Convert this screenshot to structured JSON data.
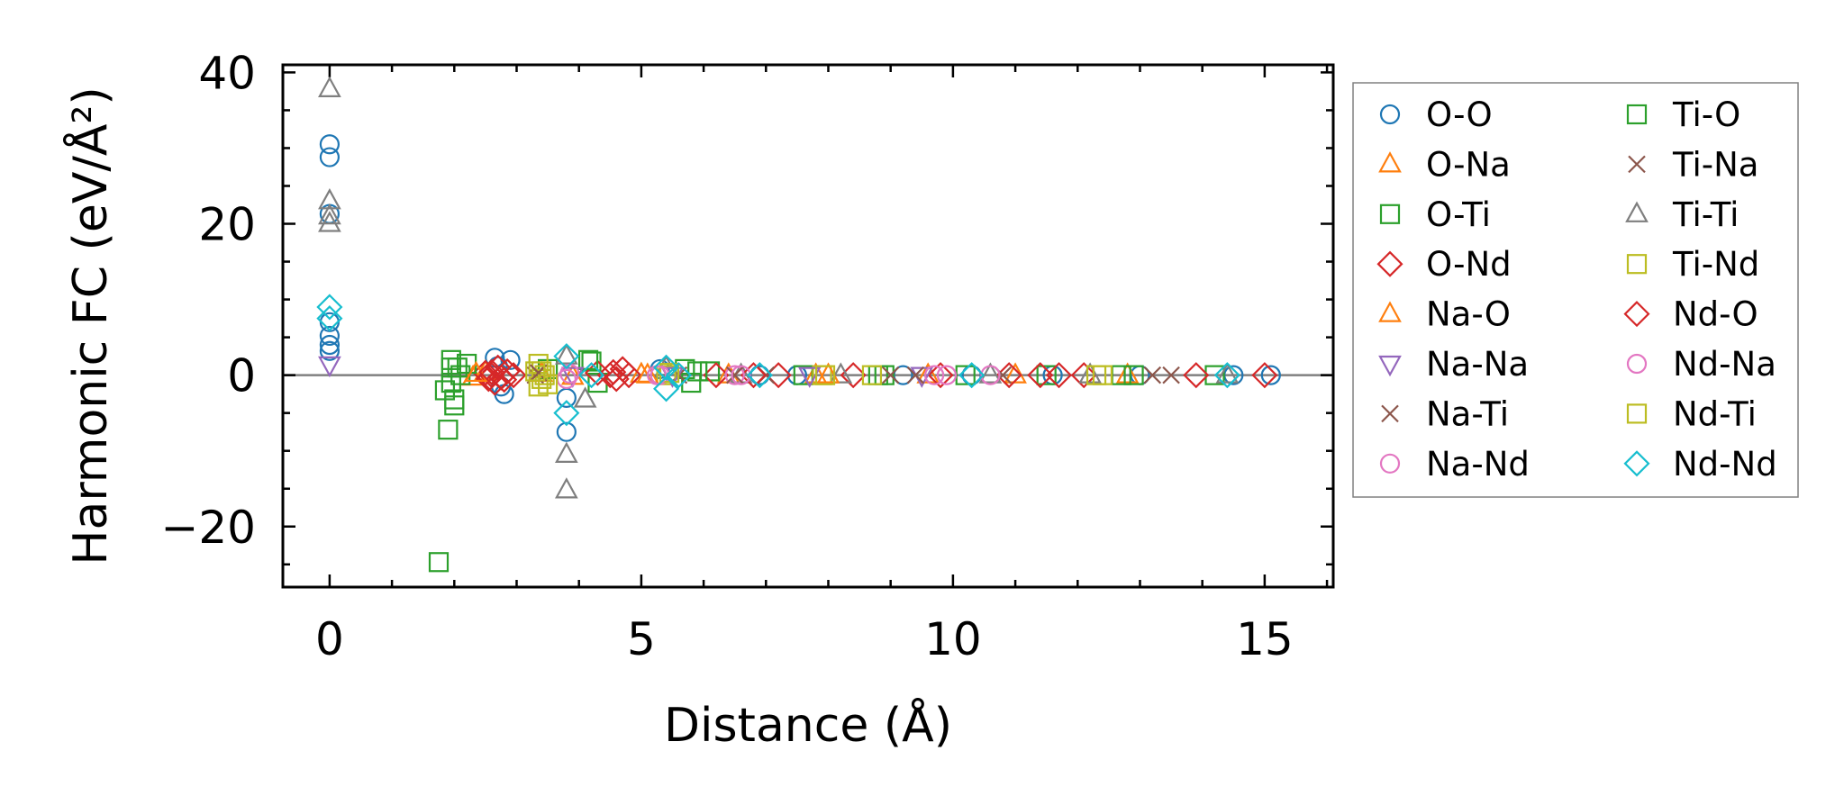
{
  "chart_data": {
    "type": "scatter",
    "title": "",
    "xlabel": "Distance (Å)",
    "ylabel": "Harmonic FC (eV/Å²)",
    "xlim": [
      -0.75,
      16.1
    ],
    "ylim": [
      -28.0,
      41.0
    ],
    "xticks": [
      0,
      5,
      10,
      15
    ],
    "xtick_labels": [
      "0",
      "5",
      "10",
      "15"
    ],
    "yticks": [
      -20,
      0,
      20,
      40
    ],
    "ytick_labels": [
      "−20",
      "0",
      "20",
      "40"
    ],
    "zero_line": true,
    "legend_placement": "outside-right",
    "series": [
      {
        "name": "O-O",
        "marker": "circle",
        "color": "#1f77b4",
        "points": [
          [
            0,
            30.5
          ],
          [
            0,
            28.8
          ],
          [
            0,
            21.3
          ],
          [
            0,
            7.0
          ],
          [
            0,
            5.2
          ],
          [
            0,
            4.0
          ],
          [
            0,
            3.2
          ],
          [
            2.65,
            2.3
          ],
          [
            2.7,
            1.2
          ],
          [
            2.75,
            -1.5
          ],
          [
            2.8,
            -2.5
          ],
          [
            2.9,
            2.0
          ],
          [
            3.8,
            -3.0
          ],
          [
            3.8,
            -7.5
          ],
          [
            5.3,
            0.8
          ],
          [
            6.9,
            0.0
          ],
          [
            7.5,
            0.0
          ],
          [
            9.2,
            0.0
          ],
          [
            10.3,
            0.0
          ],
          [
            11.6,
            0.0
          ],
          [
            13.0,
            0.0
          ],
          [
            14.5,
            0.0
          ],
          [
            15.1,
            0.0
          ]
        ]
      },
      {
        "name": "O-Na",
        "marker": "triangle-up",
        "color": "#ff7f0e",
        "points": [
          [
            2.3,
            -0.3
          ],
          [
            2.5,
            0.4
          ],
          [
            3.4,
            0.2
          ],
          [
            3.9,
            -0.2
          ],
          [
            5.0,
            0.1
          ],
          [
            6.4,
            0.0
          ],
          [
            7.8,
            0.0
          ],
          [
            9.6,
            0.0
          ],
          [
            11.0,
            0.0
          ],
          [
            12.8,
            0.0
          ]
        ]
      },
      {
        "name": "O-Ti",
        "marker": "square",
        "color": "#2ca02c",
        "points": [
          [
            1.75,
            -24.7
          ],
          [
            1.85,
            -2.0
          ],
          [
            1.9,
            -7.2
          ],
          [
            1.95,
            2.0
          ],
          [
            1.95,
            -1.0
          ],
          [
            2.0,
            -3.2
          ],
          [
            2.0,
            -4.0
          ],
          [
            2.05,
            1.0
          ],
          [
            2.1,
            0.0
          ],
          [
            3.5,
            0.8
          ],
          [
            4.2,
            1.8
          ],
          [
            4.3,
            -1.0
          ],
          [
            5.7,
            0.8
          ],
          [
            5.8,
            -1.0
          ],
          [
            6.1,
            0.5
          ],
          [
            7.6,
            0.0
          ],
          [
            8.9,
            0.0
          ],
          [
            10.2,
            0.0
          ],
          [
            11.5,
            0.0
          ],
          [
            12.9,
            0.0
          ],
          [
            14.2,
            0.0
          ]
        ]
      },
      {
        "name": "O-Nd",
        "marker": "diamond",
        "color": "#d62728",
        "points": [
          [
            2.5,
            0.3
          ],
          [
            2.55,
            -0.5
          ],
          [
            2.6,
            0.0
          ],
          [
            2.65,
            -1.0
          ],
          [
            2.7,
            1.0
          ],
          [
            2.75,
            -0.3
          ],
          [
            2.85,
            0.5
          ],
          [
            2.95,
            0.0
          ],
          [
            4.3,
            0.3
          ],
          [
            4.5,
            0.0
          ],
          [
            4.6,
            -0.5
          ],
          [
            4.7,
            0.8
          ],
          [
            4.8,
            0.0
          ],
          [
            6.2,
            0.0
          ],
          [
            7.2,
            0.0
          ],
          [
            8.4,
            0.0
          ],
          [
            10.9,
            0.0
          ],
          [
            11.4,
            0.0
          ],
          [
            12.1,
            0.0
          ],
          [
            13.9,
            0.0
          ],
          [
            15.0,
            0.0
          ]
        ]
      },
      {
        "name": "Ti-O",
        "marker": "square",
        "color": "#2ca02c",
        "points": [
          [
            1.95,
            1.0
          ],
          [
            2.2,
            1.5
          ],
          [
            4.15,
            2.0
          ],
          [
            5.9,
            0.5
          ],
          [
            8.8,
            0.0
          ],
          [
            12.7,
            0.0
          ]
        ]
      },
      {
        "name": "Ti-Na",
        "marker": "x",
        "color": "#8c564b",
        "points": [
          [
            3.3,
            0.0
          ],
          [
            5.6,
            0.0
          ],
          [
            7.0,
            0.0
          ],
          [
            9.0,
            0.0
          ],
          [
            10.8,
            0.0
          ],
          [
            13.5,
            0.0
          ]
        ]
      },
      {
        "name": "Ti-Ti",
        "marker": "triangle-up",
        "color": "#7f7f7f",
        "points": [
          [
            0,
            37.8
          ],
          [
            0,
            23.0
          ],
          [
            0,
            21.0
          ],
          [
            0,
            20.0
          ],
          [
            3.8,
            2.5
          ],
          [
            3.8,
            -10.5
          ],
          [
            3.8,
            -15.2
          ],
          [
            4.1,
            -3.2
          ],
          [
            5.4,
            1.0
          ],
          [
            6.6,
            0.0
          ],
          [
            8.2,
            0.0
          ],
          [
            10.6,
            0.0
          ],
          [
            12.2,
            0.0
          ],
          [
            14.4,
            0.0
          ]
        ]
      },
      {
        "name": "Ti-Nd",
        "marker": "square",
        "color": "#bcbd22",
        "points": [
          [
            3.35,
            1.5
          ],
          [
            3.35,
            -1.5
          ],
          [
            3.4,
            0.5
          ],
          [
            3.4,
            -0.5
          ],
          [
            3.45,
            0.0
          ],
          [
            5.4,
            0.0
          ],
          [
            7.9,
            0.0
          ],
          [
            8.7,
            0.0
          ],
          [
            12.3,
            0.0
          ]
        ]
      },
      {
        "name": "Na-O",
        "marker": "triangle-up",
        "color": "#ff7f0e",
        "points": [
          [
            2.35,
            0.2
          ],
          [
            5.1,
            0.0
          ],
          [
            8.0,
            0.0
          ]
        ]
      },
      {
        "name": "Nd-O",
        "marker": "diamond",
        "color": "#d62728",
        "points": [
          [
            2.6,
            0.4
          ],
          [
            2.8,
            -0.6
          ],
          [
            4.55,
            0.4
          ],
          [
            6.8,
            0.0
          ],
          [
            9.8,
            0.0
          ],
          [
            11.7,
            0.0
          ]
        ]
      },
      {
        "name": "Na-Na",
        "marker": "triangle-down",
        "color": "#9467bd",
        "points": [
          [
            0,
            1.4
          ],
          [
            3.9,
            0.0
          ],
          [
            5.5,
            0.0
          ],
          [
            7.7,
            0.0
          ],
          [
            9.5,
            0.0
          ]
        ]
      },
      {
        "name": "Nd-Na",
        "marker": "circle",
        "color": "#e377c2",
        "points": [
          [
            3.8,
            -0.5
          ],
          [
            5.3,
            0.0
          ],
          [
            6.5,
            0.0
          ],
          [
            9.7,
            0.0
          ],
          [
            10.6,
            0.0
          ]
        ]
      },
      {
        "name": "Na-Ti",
        "marker": "x",
        "color": "#8c564b",
        "points": [
          [
            3.35,
            0.3
          ],
          [
            6.5,
            0.0
          ],
          [
            9.4,
            0.0
          ],
          [
            13.2,
            0.0
          ]
        ]
      },
      {
        "name": "Nd-Ti",
        "marker": "square",
        "color": "#bcbd22",
        "points": [
          [
            3.3,
            0.5
          ],
          [
            3.5,
            -1.2
          ],
          [
            5.45,
            0.3
          ],
          [
            7.95,
            0.0
          ],
          [
            12.4,
            0.0
          ]
        ]
      },
      {
        "name": "Na-Nd",
        "marker": "circle",
        "color": "#e377c2",
        "points": [
          [
            3.85,
            0.2
          ],
          [
            5.25,
            0.0
          ],
          [
            6.6,
            0.0
          ],
          [
            9.9,
            0.0
          ]
        ]
      },
      {
        "name": "Nd-Nd",
        "marker": "diamond",
        "color": "#17becf",
        "points": [
          [
            0,
            9.0
          ],
          [
            0,
            7.5
          ],
          [
            3.8,
            2.5
          ],
          [
            3.8,
            -5.0
          ],
          [
            4.2,
            0.0
          ],
          [
            5.4,
            1.0
          ],
          [
            5.4,
            -1.8
          ],
          [
            5.6,
            0.0
          ],
          [
            6.9,
            0.0
          ],
          [
            10.3,
            0.0
          ],
          [
            14.4,
            0.0
          ]
        ]
      }
    ],
    "legend": {
      "columns": [
        [
          "O-O",
          "O-Na",
          "O-Ti",
          "O-Nd",
          "Na-O",
          "Na-Na",
          "Na-Ti",
          "Na-Nd"
        ],
        [
          "Ti-O",
          "Ti-Na",
          "Ti-Ti",
          "Ti-Nd",
          "Nd-O",
          "Nd-Na",
          "Nd-Ti",
          "Nd-Nd"
        ]
      ]
    }
  }
}
